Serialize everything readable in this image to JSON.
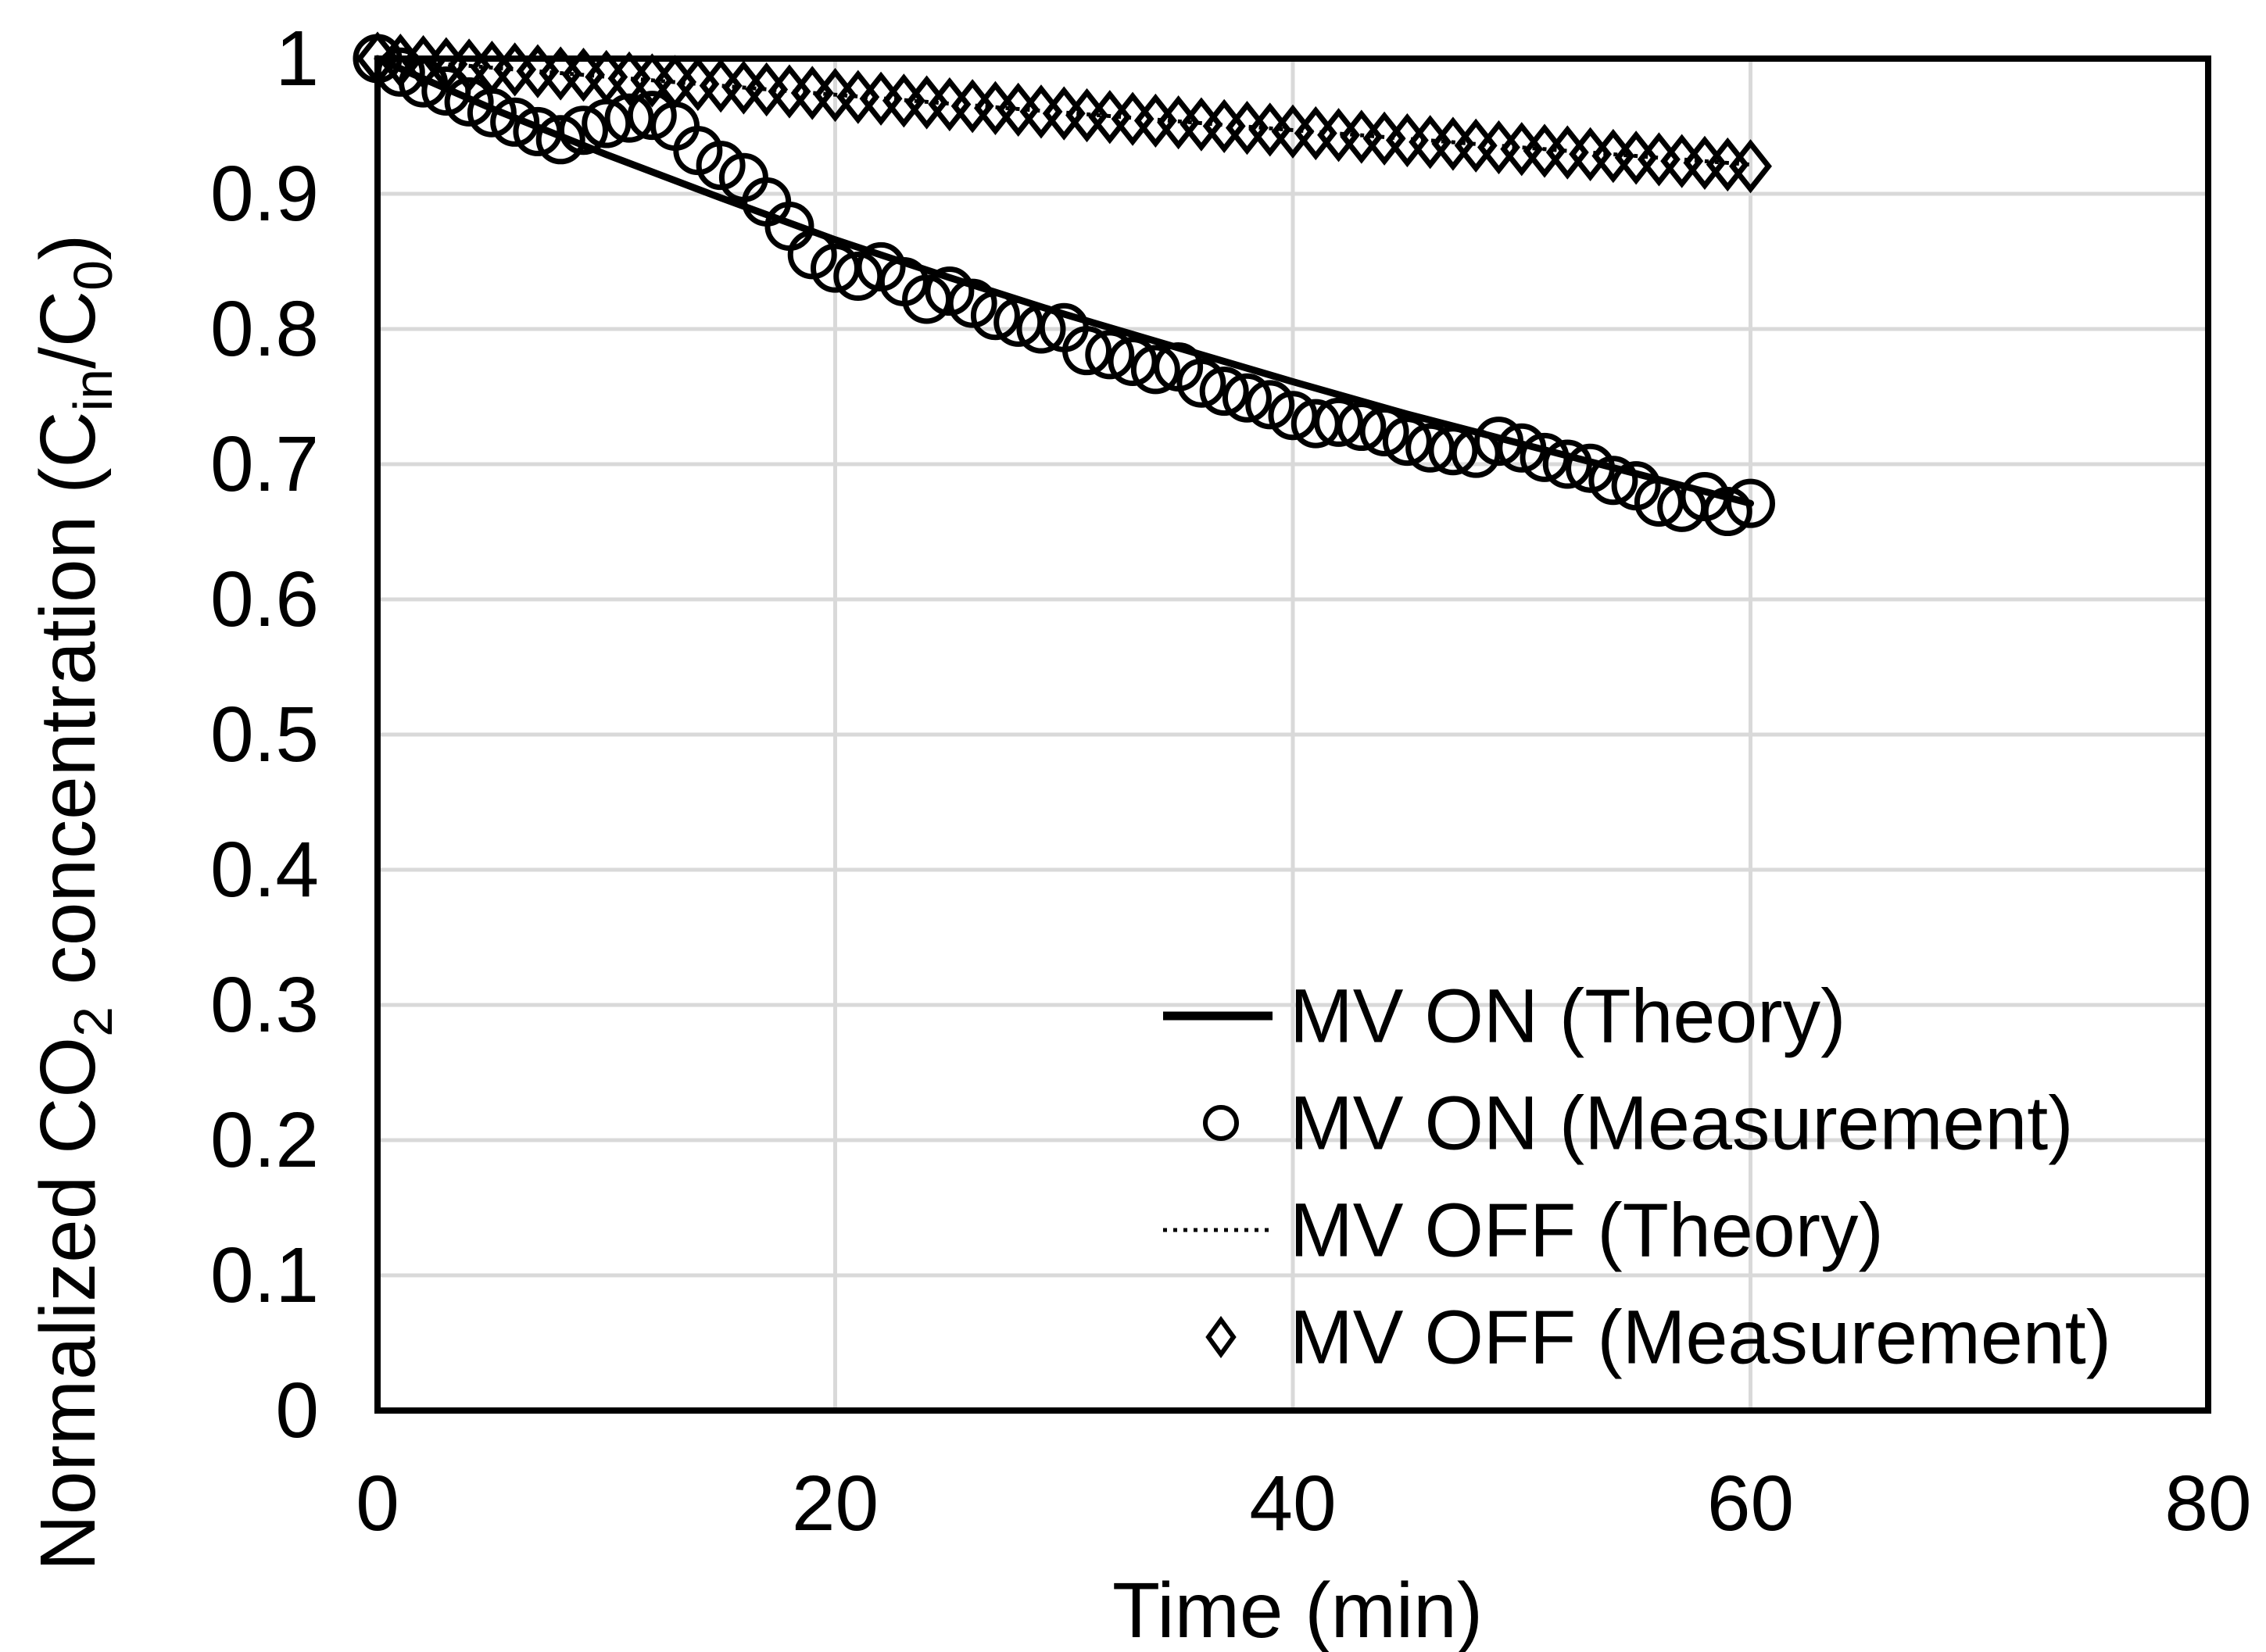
{
  "chart_data": {
    "type": "line+scatter",
    "title": "",
    "xlabel": "Time (min)",
    "ylabel": "Normalized CO2 concentration (Cin/C0)",
    "ylabel_runs": [
      {
        "text": "Normalized CO"
      },
      {
        "text": "2",
        "sub": true
      },
      {
        "text": " concentration (C"
      },
      {
        "text": "in",
        "sub": true
      },
      {
        "text": "/C"
      },
      {
        "text": "0",
        "sub": true
      },
      {
        "text": ")"
      }
    ],
    "xlim": [
      0,
      80
    ],
    "ylim": [
      0,
      1
    ],
    "x_ticks": [
      0,
      20,
      40,
      60,
      80
    ],
    "x_tick_labels": [
      "0",
      "20",
      "40",
      "60",
      "80"
    ],
    "y_ticks": [
      0,
      0.1,
      0.2,
      0.3,
      0.4,
      0.5,
      0.6,
      0.7,
      0.8,
      0.9,
      1
    ],
    "y_tick_labels": [
      "0",
      "0.1",
      "0.2",
      "0.3",
      "0.4",
      "0.5",
      "0.6",
      "0.7",
      "0.8",
      "0.9",
      "1"
    ],
    "grid": {
      "shown": true,
      "color": "#d9d9d9",
      "x_gridlines": [
        20,
        40,
        60
      ],
      "y_gridlines": [
        0.1,
        0.2,
        0.3,
        0.4,
        0.5,
        0.6,
        0.7,
        0.8,
        0.9
      ]
    },
    "frame_color": "#000000",
    "background": "#ffffff",
    "legend": {
      "position": "inside-bottom-right"
    },
    "series": [
      {
        "name": "MV ON (Theory)",
        "type": "line",
        "style": "solid",
        "color": "#000000",
        "x": [
          0,
          5,
          10,
          15,
          20,
          25,
          30,
          35,
          40,
          45,
          50,
          55,
          60
        ],
        "y": [
          1.0,
          0.963,
          0.929,
          0.897,
          0.866,
          0.838,
          0.811,
          0.786,
          0.761,
          0.737,
          0.715,
          0.693,
          0.671
        ]
      },
      {
        "name": "MV ON (Measurement)",
        "type": "scatter",
        "marker": "circle",
        "color": "#000000",
        "t_start": 0,
        "t_step": 1,
        "y": [
          1.0,
          0.99,
          0.982,
          0.976,
          0.968,
          0.96,
          0.953,
          0.946,
          0.94,
          0.947,
          0.952,
          0.956,
          0.958,
          0.95,
          0.932,
          0.921,
          0.912,
          0.894,
          0.876,
          0.855,
          0.845,
          0.839,
          0.846,
          0.835,
          0.822,
          0.828,
          0.819,
          0.81,
          0.805,
          0.8,
          0.801,
          0.784,
          0.781,
          0.776,
          0.77,
          0.772,
          0.76,
          0.754,
          0.749,
          0.744,
          0.736,
          0.73,
          0.731,
          0.728,
          0.724,
          0.717,
          0.712,
          0.71,
          0.708,
          0.717,
          0.712,
          0.705,
          0.7,
          0.697,
          0.688,
          0.684,
          0.672,
          0.668,
          0.676,
          0.665,
          0.671
        ]
      },
      {
        "name": "MV OFF (Theory)",
        "type": "line",
        "style": "dotted",
        "color": "#000000",
        "x": [
          0,
          10,
          20,
          30,
          40,
          50,
          60
        ],
        "y": [
          1.0,
          0.9866,
          0.9733,
          0.9601,
          0.9471,
          0.9343,
          0.9216
        ]
      },
      {
        "name": "MV OFF (Measurement)",
        "type": "scatter",
        "marker": "diamond",
        "color": "#000000",
        "t_start": 0,
        "t_step": 1,
        "y": [
          1.0,
          0.9985,
          0.9974,
          0.9959,
          0.9949,
          0.9933,
          0.992,
          0.9907,
          0.989,
          0.9881,
          0.9864,
          0.9853,
          0.9839,
          0.9827,
          0.9812,
          0.98,
          0.9786,
          0.9772,
          0.9757,
          0.9746,
          0.9731,
          0.9716,
          0.9704,
          0.9689,
          0.9676,
          0.9662,
          0.9649,
          0.9634,
          0.9622,
          0.9608,
          0.9595,
          0.9581,
          0.9568,
          0.9554,
          0.9541,
          0.9528,
          0.9514,
          0.9501,
          0.9488,
          0.9475,
          0.9461,
          0.9448,
          0.9435,
          0.9422,
          0.9409,
          0.9396,
          0.9383,
          0.937,
          0.9357,
          0.9344,
          0.9331,
          0.9318,
          0.9306,
          0.9293,
          0.928,
          0.9267,
          0.9255,
          0.9242,
          0.9229,
          0.9217,
          0.9204
        ]
      }
    ]
  }
}
